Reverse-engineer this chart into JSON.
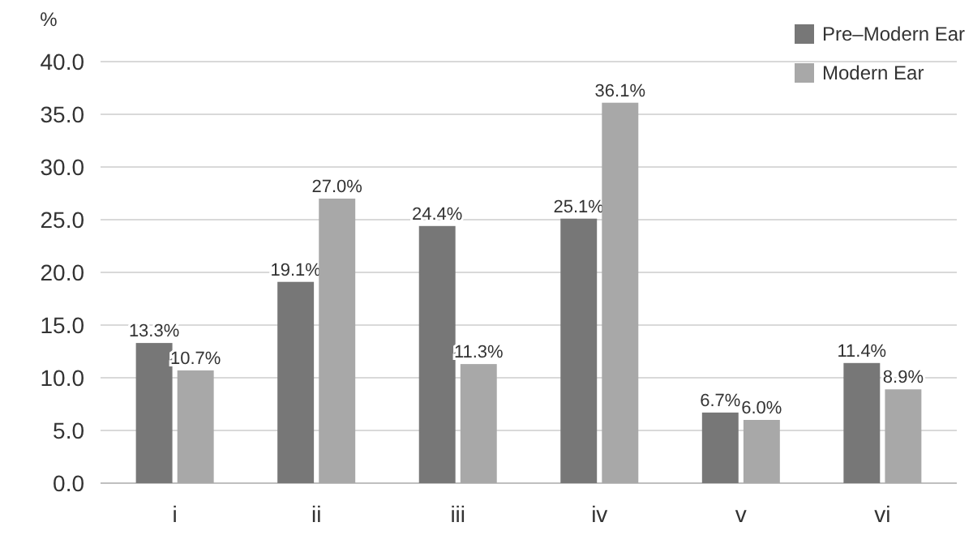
{
  "chart_data": {
    "type": "bar",
    "ylabel": "%",
    "categories": [
      "i",
      "ii",
      "iii",
      "iv",
      "v",
      "vi"
    ],
    "series": [
      {
        "name": "Pre–Modern Ear",
        "color": "#777777",
        "values": [
          13.3,
          19.1,
          24.4,
          25.1,
          6.7,
          11.4
        ],
        "value_labels": [
          "13.3%",
          "19.1%",
          "24.4%",
          "25.1%",
          "6.7%",
          "11.4%"
        ]
      },
      {
        "name": "Modern Ear",
        "color": "#a8a8a8",
        "values": [
          10.7,
          27.0,
          11.3,
          36.1,
          6.0,
          8.9
        ],
        "value_labels": [
          "10.7%",
          "27.0%",
          "11.3%",
          "36.1%",
          "6.0%",
          "8.9%"
        ]
      }
    ],
    "ylim": [
      0,
      40
    ],
    "yticks": [
      {
        "value": 0,
        "label": "0.0"
      },
      {
        "value": 5,
        "label": "5.0"
      },
      {
        "value": 10,
        "label": "10.0"
      },
      {
        "value": 15,
        "label": "15.0"
      },
      {
        "value": 20,
        "label": "20.0"
      },
      {
        "value": 25,
        "label": "25.0"
      },
      {
        "value": 30,
        "label": "30.0"
      },
      {
        "value": 35,
        "label": "35.0"
      },
      {
        "value": 40,
        "label": "40.0"
      }
    ],
    "grid": "y",
    "legend": "top right"
  }
}
